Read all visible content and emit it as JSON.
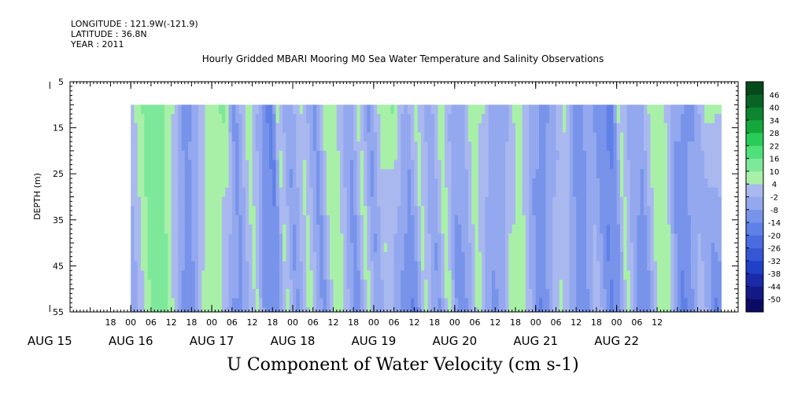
{
  "header": {
    "longitude": "LONGITUDE : 121.9W(-121.9)",
    "latitude": "LATITUDE : 36.8N",
    "year": "YEAR : 2011"
  },
  "chart_data": {
    "type": "heatmap",
    "title": "Hourly Gridded MBARI Mooring M0 Sea Water Temperature and Salinity Observations",
    "xlabel": "U Component of Water Velocity (cm s-1)",
    "ylabel": "DEPTH (m)",
    "x_start_hour": -18,
    "x_end_hour": 180,
    "data_start_hour": 0,
    "data_end_hour": 175,
    "ylim": [
      5,
      55
    ],
    "y_ticks": [
      "5",
      "15",
      "25",
      "35",
      "45",
      "55"
    ],
    "y_tick_values": [
      5,
      15,
      25,
      35,
      45,
      55
    ],
    "data_depth_top": 10,
    "x_hour_ticks": [
      "18",
      "00",
      "06",
      "12",
      "18",
      "00",
      "06",
      "12",
      "18",
      "00",
      "06",
      "12",
      "18",
      "00",
      "06",
      "12",
      "18",
      "00",
      "06",
      "12",
      "18",
      "00",
      "06",
      "12",
      "18",
      "00",
      "06",
      "12"
    ],
    "x_hour_values": [
      -6,
      0,
      6,
      12,
      18,
      24,
      30,
      36,
      42,
      48,
      54,
      60,
      66,
      72,
      78,
      84,
      90,
      96,
      102,
      108,
      114,
      120,
      126,
      132,
      138,
      144,
      150,
      156
    ],
    "x_day_labels": [
      "AUG 15",
      "AUG 16",
      "AUG 17",
      "AUG 18",
      "AUG 19",
      "AUG 20",
      "AUG 21",
      "AUG 22"
    ],
    "x_day_values": [
      -24,
      0,
      24,
      48,
      72,
      96,
      120,
      144
    ],
    "colorbar": {
      "levels": [
        -50,
        -44,
        -38,
        -32,
        -26,
        -20,
        -14,
        -8,
        -2,
        4,
        10,
        16,
        22,
        28,
        34,
        40,
        46
      ],
      "labels": [
        "-50",
        "-44",
        "-38",
        "-32",
        "-26",
        "-20",
        "-14",
        "-8",
        "-2",
        "4",
        "10",
        "16",
        "22",
        "28",
        "34",
        "40",
        "46"
      ],
      "colors": [
        "#0b0b66",
        "#141a85",
        "#1a2aa8",
        "#2040c8",
        "#3557d6",
        "#4a6ce0",
        "#5f80e6",
        "#7893ea",
        "#93a8ee",
        "#aab8f0",
        "#a8f0a8",
        "#7ee89a",
        "#4ee07a",
        "#28cc58",
        "#14a83c",
        "#0c8430",
        "#086424",
        "#054a1a"
      ]
    },
    "series": [
      {
        "hours": [
          -3,
          3,
          8,
          12,
          15,
          18,
          22,
          27,
          30,
          34,
          37,
          41,
          43,
          46,
          50,
          54,
          57,
          60,
          64,
          67,
          70,
          73,
          77,
          81,
          84,
          88,
          91,
          94,
          97,
          100,
          104,
          107,
          110,
          114,
          118,
          121,
          124,
          128,
          131,
          135,
          139,
          142,
          144,
          147,
          150,
          153,
          157,
          160,
          163,
          166,
          170,
          174
        ],
        "shallow": [
          -6,
          10,
          12,
          4,
          -10,
          -8,
          6,
          12,
          -12,
          8,
          -2,
          -20,
          6,
          -8,
          4,
          -10,
          8,
          6,
          -8,
          6,
          -10,
          4,
          10,
          -6,
          6,
          -6,
          8,
          -2,
          -8,
          6,
          4,
          -8,
          -6,
          8,
          -4,
          -10,
          -8,
          6,
          -14,
          -6,
          -12,
          -18,
          6,
          -4,
          -6,
          4,
          8,
          -6,
          -8,
          -10,
          6,
          4
        ],
        "deep": [
          -8,
          12,
          10,
          -10,
          -12,
          6,
          10,
          -10,
          -8,
          6,
          -14,
          -8,
          6,
          -10,
          8,
          -12,
          6,
          4,
          -14,
          8,
          -8,
          4,
          -12,
          -16,
          6,
          -10,
          8,
          -14,
          -6,
          8,
          -12,
          -6,
          10,
          4,
          -16,
          -6,
          8,
          -8,
          -14,
          4,
          -16,
          -6,
          8,
          -8,
          -14,
          6,
          4,
          -18,
          -10,
          4,
          -16,
          -10
        ]
      }
    ]
  }
}
